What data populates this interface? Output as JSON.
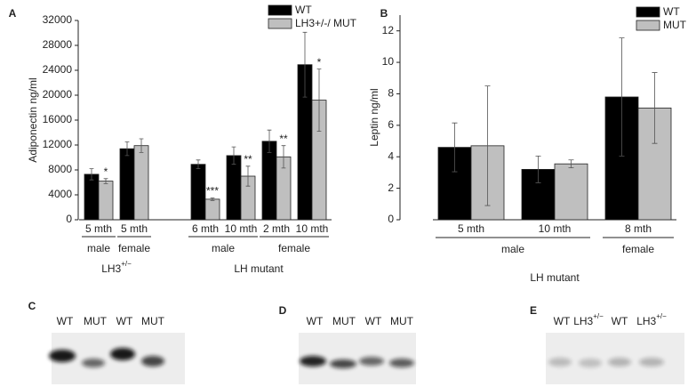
{
  "chart_data": [
    {
      "type": "bar",
      "panel_label": "A",
      "ylabel": "Adiponectin ng/ml",
      "ylim": [
        0,
        32000
      ],
      "yticks": [
        0,
        4000,
        8000,
        12000,
        16000,
        20000,
        24000,
        28000,
        32000
      ],
      "groups": [
        {
          "label": {
            "base": "LH3",
            "sup": "+/−"
          },
          "subgroups": [
            {
              "label": "male",
              "categories": [
                "5 mth"
              ]
            },
            {
              "label": "female",
              "categories": [
                "5 mth"
              ]
            }
          ]
        },
        {
          "label": "LH mutant",
          "subgroups": [
            {
              "label": "male",
              "categories": [
                "6 mth",
                "10 mth"
              ]
            },
            {
              "label": "female",
              "categories": [
                "2 mth",
                "10 mth"
              ]
            }
          ]
        }
      ],
      "series": [
        {
          "name": "WT",
          "color": "#000000",
          "values": [
            7300,
            11400,
            8900,
            10300,
            12600,
            24900
          ],
          "errors": [
            900,
            1100,
            700,
            1400,
            1800,
            5200
          ],
          "significance": [
            null,
            null,
            null,
            null,
            null,
            null
          ]
        },
        {
          "name": "LH3+/-/ MUT",
          "color": "#bfbfbf",
          "values": [
            6200,
            11900,
            3300,
            7000,
            10100,
            19200
          ],
          "errors": [
            400,
            1100,
            200,
            1600,
            1800,
            5000
          ],
          "significance": [
            "*",
            null,
            "***",
            "**",
            "**",
            "*"
          ]
        }
      ]
    },
    {
      "type": "bar",
      "panel_label": "B",
      "ylabel": "Leptin ng/ml",
      "ylim": [
        0,
        13
      ],
      "yticks": [
        0,
        2,
        4,
        6,
        8,
        10,
        12
      ],
      "groups": [
        {
          "label": "LH mutant",
          "subgroups": [
            {
              "label": "male",
              "categories": [
                "5 mth",
                "10 mth"
              ]
            },
            {
              "label": "female",
              "categories": [
                "8 mth"
              ]
            }
          ]
        }
      ],
      "series": [
        {
          "name": "WT",
          "color": "#000000",
          "values": [
            4.6,
            3.2,
            7.8
          ],
          "errors": [
            1.55,
            0.85,
            3.75
          ],
          "significance": [
            null,
            null,
            null
          ]
        },
        {
          "name": "MUT",
          "color": "#bfbfbf",
          "values": [
            4.7,
            3.55,
            7.1
          ],
          "errors": [
            3.8,
            0.25,
            2.25
          ],
          "significance": [
            null,
            null,
            null
          ]
        }
      ]
    }
  ],
  "blots": [
    {
      "panel_label": "C",
      "lanes": [
        "WT",
        "MUT",
        "WT",
        "MUT"
      ]
    },
    {
      "panel_label": "D",
      "lanes": [
        "WT",
        "MUT",
        "WT",
        "MUT"
      ]
    },
    {
      "panel_label": "E",
      "lanes": [
        "WT",
        {
          "base": "LH3",
          "sup": "+/−"
        },
        "WT",
        {
          "base": "LH3",
          "sup": "+/−"
        }
      ]
    }
  ]
}
